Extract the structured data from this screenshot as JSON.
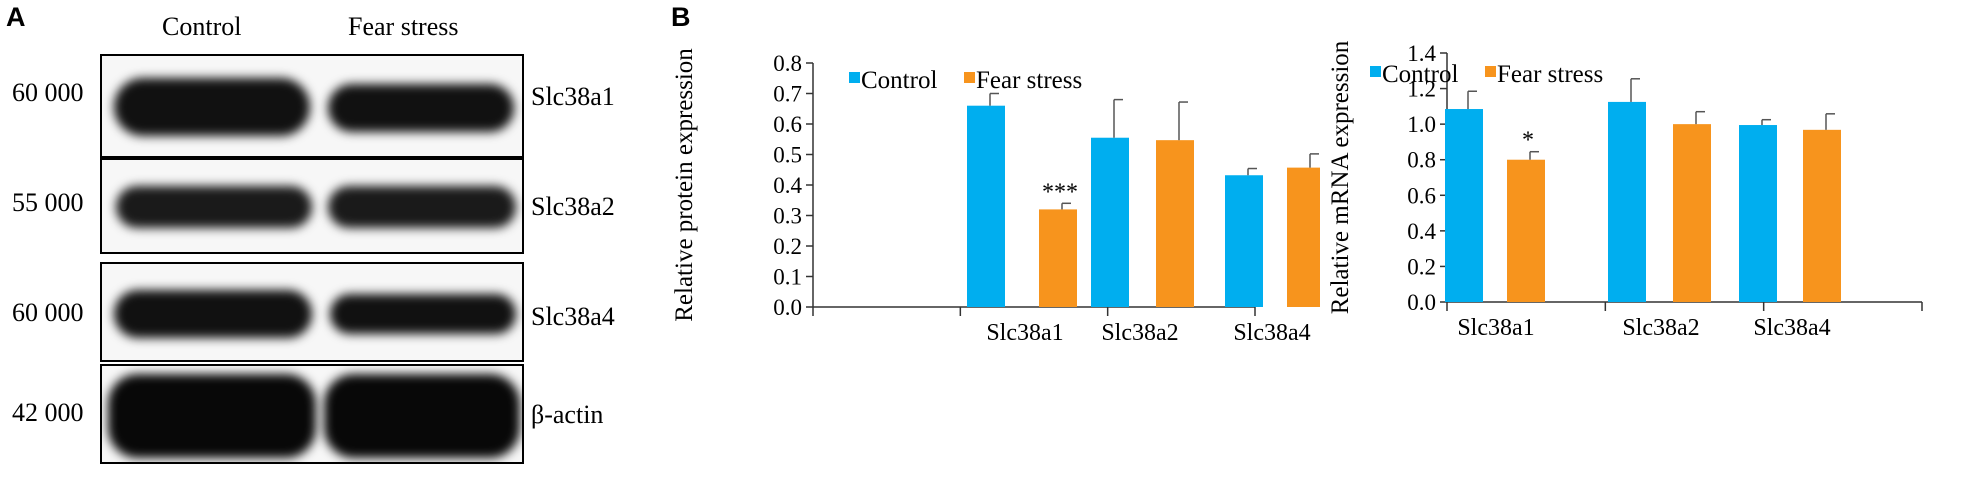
{
  "panels": {
    "a_label": "A",
    "b_label": "B"
  },
  "blot": {
    "columns": [
      "Control",
      "Fear stress"
    ],
    "rows": [
      {
        "mw": "60 000",
        "protein": "Slc38a1"
      },
      {
        "mw": "55 000",
        "protein": "Slc38a2"
      },
      {
        "mw": "60 000",
        "protein": "Slc38a4"
      },
      {
        "mw": "42 000",
        "protein": "β-actin"
      }
    ]
  },
  "colors": {
    "control": "#00aeef",
    "fear_stress": "#f7941d"
  },
  "chart_data": [
    {
      "type": "bar",
      "title": "",
      "xlabel": "",
      "ylabel": "Relative protein expression",
      "categories": [
        "Slc38a1",
        "Slc38a2",
        "Slc38a4"
      ],
      "series": [
        {
          "name": "Control",
          "values": [
            0.66,
            0.555,
            0.432
          ],
          "errors": [
            0.04,
            0.125,
            0.022
          ]
        },
        {
          "name": "Fear stress",
          "values": [
            0.32,
            0.547,
            0.457
          ],
          "errors": [
            0.02,
            0.125,
            0.045
          ]
        }
      ],
      "ylim": [
        0,
        0.8
      ],
      "yticks": [
        "0.0",
        "0.1",
        "0.2",
        "0.3",
        "0.4",
        "0.5",
        "0.6",
        "0.7",
        "0.8"
      ],
      "significance": [
        {
          "category": "Slc38a1",
          "series": "Fear stress",
          "label": "***"
        }
      ],
      "legend": "top-right",
      "grid": false
    },
    {
      "type": "bar",
      "title": "",
      "xlabel": "",
      "ylabel": "Relative mRNA expression",
      "categories": [
        "Slc38a1",
        "Slc38a2",
        "Slc38a4"
      ],
      "series": [
        {
          "name": "Control",
          "values": [
            1.085,
            1.125,
            0.995
          ],
          "errors": [
            0.1,
            0.13,
            0.03
          ]
        },
        {
          "name": "Fear stress",
          "values": [
            0.8,
            1.0,
            0.968
          ],
          "errors": [
            0.045,
            0.07,
            0.09
          ]
        }
      ],
      "ylim": [
        0,
        1.4
      ],
      "yticks": [
        "0.0",
        "0.2",
        "0.4",
        "0.6",
        "0.8",
        "1.0",
        "1.2",
        "1.4"
      ],
      "significance": [
        {
          "category": "Slc38a1",
          "series": "Fear stress",
          "label": "*"
        }
      ],
      "legend": "top-right",
      "grid": false
    }
  ]
}
